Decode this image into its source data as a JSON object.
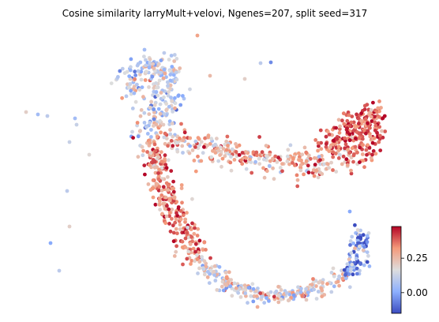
{
  "chart_data": {
    "type": "scatter",
    "title": "Cosine similarity larryMult+velovi, Ngenes=207, split seed=317",
    "xlabel": "",
    "ylabel": "",
    "axes_visible": false,
    "grid": false,
    "colormap": "coolwarm",
    "colorbar": {
      "placement": "right",
      "range": [
        -0.15,
        0.48
      ],
      "ticks": [
        0.0,
        0.25
      ],
      "tick_labels": [
        "0.00",
        "0.25"
      ]
    },
    "points_note": "Roughly 1500 cells forming a U/hook-shaped embedding; colour encodes cosine similarity",
    "clusters": [
      {
        "region": "upper-left arm",
        "value_mean": 0.12,
        "value_sd": 0.1
      },
      {
        "region": "horizontal middle band",
        "value_mean": 0.26,
        "value_sd": 0.1
      },
      {
        "region": "right lobe",
        "value_mean": 0.38,
        "value_sd": 0.07
      },
      {
        "region": "descending left arm",
        "value_mean": 0.33,
        "value_sd": 0.08
      },
      {
        "region": "bottom curve",
        "value_mean": 0.18,
        "value_sd": 0.1
      },
      {
        "region": "right upturn",
        "value_mean": 0.0,
        "value_sd": 0.12
      }
    ]
  },
  "colors": {
    "cold": "#3b4cc0",
    "neutral": "#dddddd",
    "hot": "#b40426"
  }
}
